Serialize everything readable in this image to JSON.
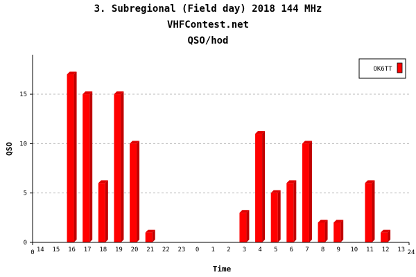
{
  "chart_data": {
    "type": "bar",
    "title": "3. Subregional (Field day) 2018 144 MHz",
    "subtitle": "VHFContest.net",
    "subtitle2": "QSO/hod",
    "xlabel": "Time",
    "ylabel": "QSO",
    "categories": [
      "14",
      "15",
      "16",
      "17",
      "18",
      "19",
      "20",
      "21",
      "22",
      "23",
      "0",
      "1",
      "2",
      "3",
      "4",
      "5",
      "6",
      "7",
      "8",
      "9",
      "10",
      "11",
      "12",
      "13"
    ],
    "x_end_labels": [
      "0",
      "24"
    ],
    "series": [
      {
        "name": "OK6TT",
        "color": "#ff0000",
        "values": [
          0,
          0,
          17,
          15,
          6,
          15,
          10,
          1,
          0,
          0,
          0,
          0,
          0,
          3,
          11,
          5,
          6,
          10,
          2,
          2,
          0,
          6,
          1,
          0
        ]
      }
    ],
    "yticks": [
      0,
      5,
      10,
      15
    ],
    "ylim": [
      0,
      19
    ],
    "grid": true,
    "legend": "top-right"
  }
}
